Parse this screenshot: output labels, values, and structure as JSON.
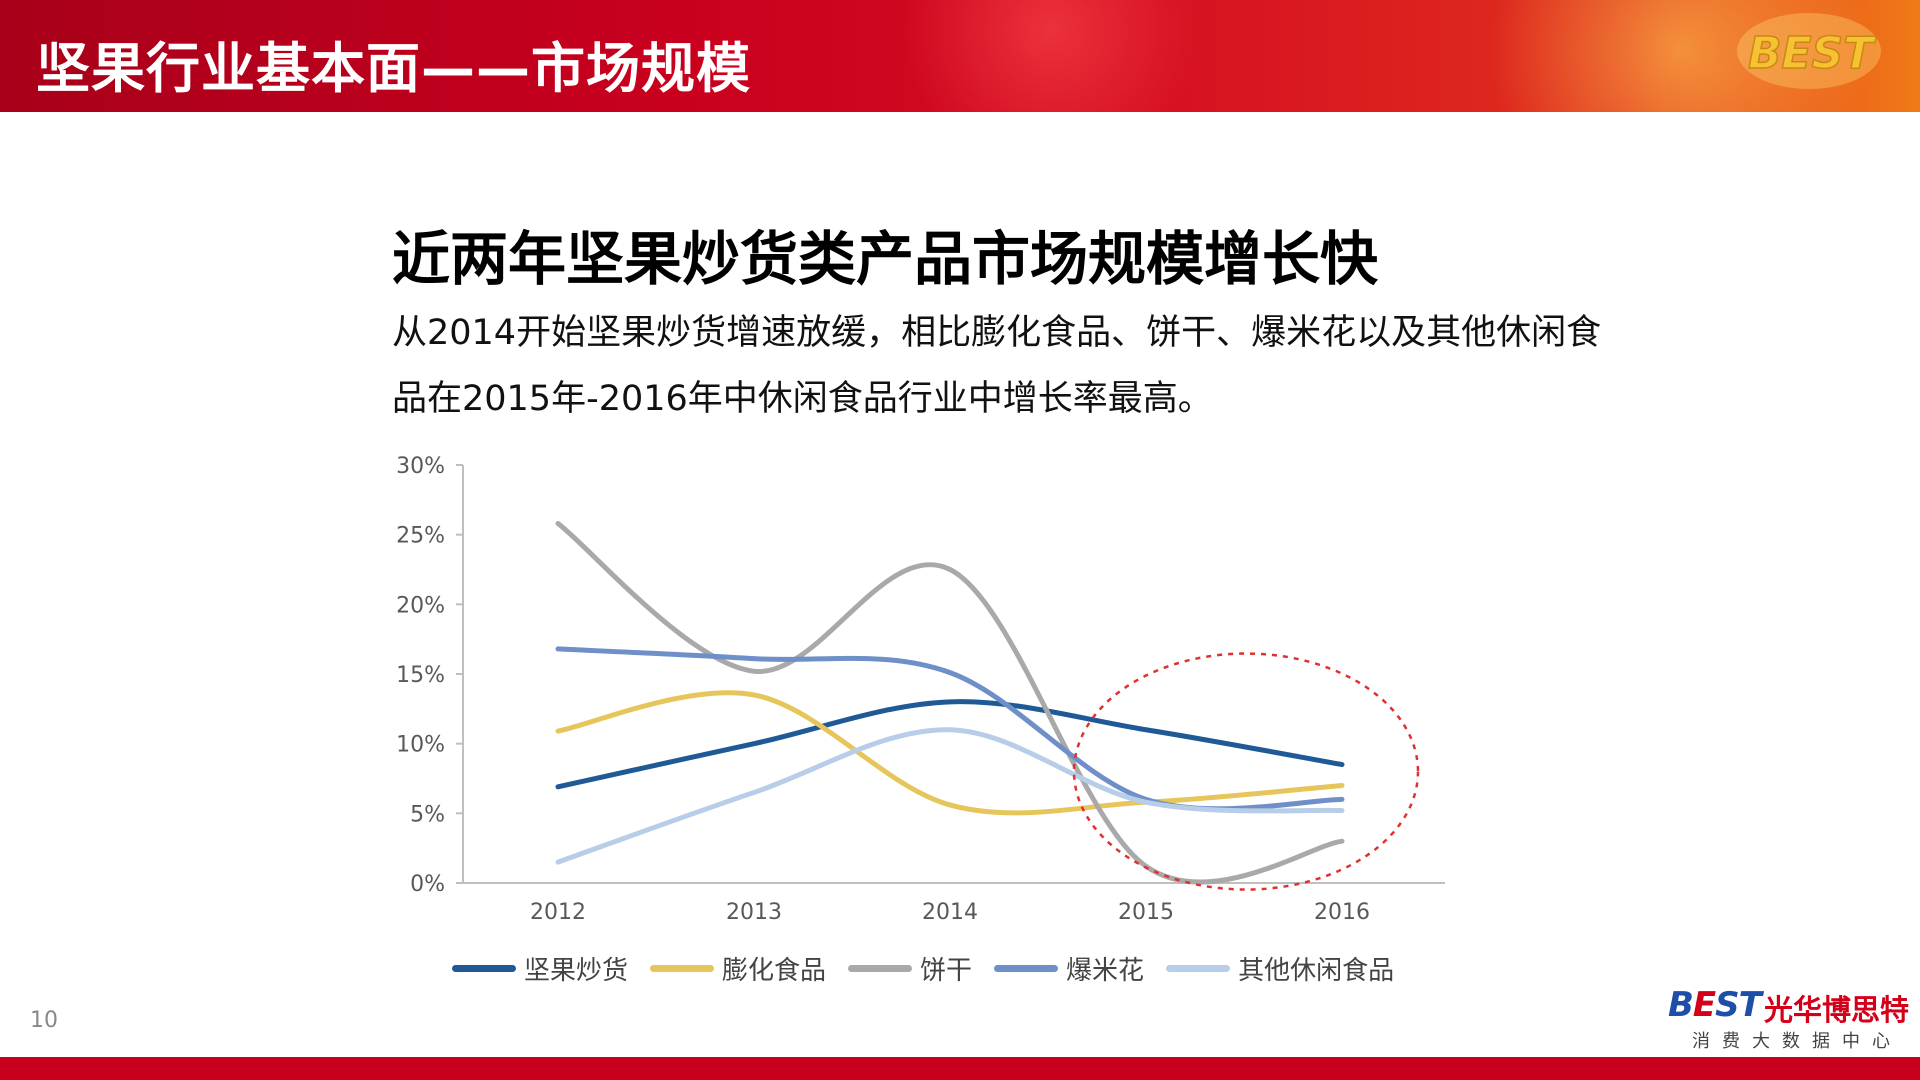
{
  "header": {
    "title": "坚果行业基本面——市场规模",
    "logo_text": "BEST"
  },
  "headline": "近两年坚果炒货类产品市场规模增长快",
  "body_text": "从2014开始坚果炒货增速放缓，相比膨化食品、饼干、爆米花以及其他休闲食品在2015年-2016年中休闲食品行业中增长率最高。",
  "chart_data": {
    "type": "line",
    "categories": [
      "2012",
      "2013",
      "2014",
      "2015",
      "2016"
    ],
    "ylim": [
      0,
      30
    ],
    "yticks": [
      "0%",
      "5%",
      "10%",
      "15%",
      "20%",
      "25%",
      "30%"
    ],
    "grid": false,
    "legend_position": "bottom",
    "series": [
      {
        "name": "坚果炒货",
        "color": "#1f5a96",
        "values": [
          6.9,
          10.0,
          13.0,
          11.0,
          8.5
        ]
      },
      {
        "name": "膨化食品",
        "color": "#e6c65a",
        "values": [
          10.9,
          13.5,
          5.6,
          5.8,
          7.0
        ]
      },
      {
        "name": "饼干",
        "color": "#a9a9a9",
        "values": [
          25.8,
          15.2,
          22.5,
          1.2,
          3.0
        ]
      },
      {
        "name": "爆米花",
        "color": "#6e8fc8",
        "values": [
          16.8,
          16.1,
          15.1,
          6.0,
          6.0
        ]
      },
      {
        "name": "其他休闲食品",
        "color": "#b7cde8",
        "values": [
          1.5,
          6.5,
          11.0,
          5.8,
          5.2
        ]
      }
    ],
    "highlight_color": "#e03030"
  },
  "footer": {
    "page_number": "10",
    "logo_mark_prefix": "B",
    "logo_mark_e": "E",
    "logo_mark_suffix": "ST",
    "logo_cn": "光华博思特",
    "logo_sub": "消费大数据中心"
  },
  "colors": {
    "brand_red": "#c8001e",
    "axis": "#bfbfbf",
    "tick_text": "#595959"
  }
}
